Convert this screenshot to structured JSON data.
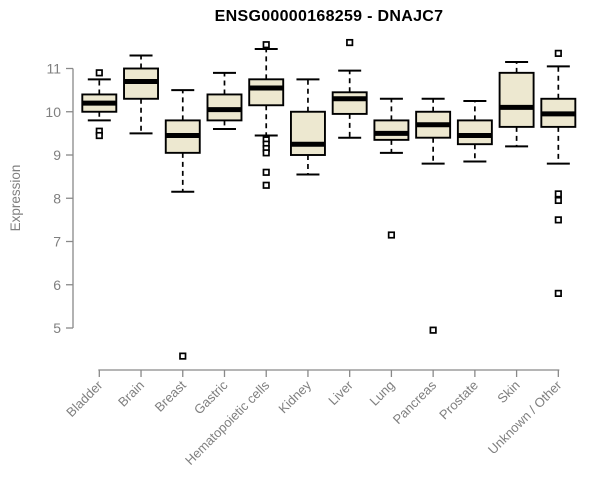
{
  "header": {
    "title": "ENSG00000168259 - DNAJC7"
  },
  "chart_data": {
    "type": "boxplot",
    "title": "ENSG00000168259 - DNAJC7",
    "xlabel": "",
    "ylabel": "Expression",
    "ylim": [
      4.2,
      11.8
    ],
    "yticks": [
      5,
      6,
      7,
      8,
      9,
      10,
      11
    ],
    "grid": false,
    "legend": "none",
    "categories": [
      "Bladder",
      "Brain",
      "Breast",
      "Gastric",
      "Hematopoietic cells",
      "Kidney",
      "Liver",
      "Lung",
      "Pancreas",
      "Prostate",
      "Skin",
      "Unknown / Other"
    ],
    "boxes": [
      {
        "category": "Bladder",
        "whisker_low": 9.8,
        "q1": 10.0,
        "median": 10.2,
        "q3": 10.4,
        "whisker_high": 10.75,
        "outliers": [
          10.9,
          9.55,
          9.45
        ]
      },
      {
        "category": "Brain",
        "whisker_low": 9.5,
        "q1": 10.3,
        "median": 10.7,
        "q3": 11.0,
        "whisker_high": 11.3,
        "outliers": []
      },
      {
        "category": "Breast",
        "whisker_low": 8.15,
        "q1": 9.05,
        "median": 9.45,
        "q3": 9.8,
        "whisker_high": 10.5,
        "outliers": [
          4.35
        ]
      },
      {
        "category": "Gastric",
        "whisker_low": 9.6,
        "q1": 9.8,
        "median": 10.05,
        "q3": 10.4,
        "whisker_high": 10.9,
        "outliers": []
      },
      {
        "category": "Hematopoietic cells",
        "whisker_low": 9.45,
        "q1": 10.15,
        "median": 10.55,
        "q3": 10.75,
        "whisker_high": 11.45,
        "outliers": [
          11.55,
          9.35,
          9.25,
          9.15,
          9.05,
          8.6,
          8.3
        ]
      },
      {
        "category": "Kidney",
        "whisker_low": 8.55,
        "q1": 9.0,
        "median": 9.25,
        "q3": 10.0,
        "whisker_high": 10.75,
        "outliers": []
      },
      {
        "category": "Liver",
        "whisker_low": 9.4,
        "q1": 9.95,
        "median": 10.3,
        "q3": 10.45,
        "whisker_high": 10.95,
        "outliers": [
          11.6
        ]
      },
      {
        "category": "Lung",
        "whisker_low": 9.05,
        "q1": 9.35,
        "median": 9.5,
        "q3": 9.8,
        "whisker_high": 10.3,
        "outliers": [
          7.15
        ]
      },
      {
        "category": "Pancreas",
        "whisker_low": 8.8,
        "q1": 9.4,
        "median": 9.7,
        "q3": 10.0,
        "whisker_high": 10.3,
        "outliers": [
          4.95
        ]
      },
      {
        "category": "Prostate",
        "whisker_low": 8.85,
        "q1": 9.25,
        "median": 9.45,
        "q3": 9.8,
        "whisker_high": 10.25,
        "outliers": []
      },
      {
        "category": "Skin",
        "whisker_low": 9.2,
        "q1": 9.65,
        "median": 10.1,
        "q3": 10.9,
        "whisker_high": 11.15,
        "outliers": []
      },
      {
        "category": "Unknown / Other",
        "whisker_low": 8.8,
        "q1": 9.65,
        "median": 9.95,
        "q3": 10.3,
        "whisker_high": 11.05,
        "outliers": [
          11.35,
          8.1,
          7.95,
          7.5,
          5.8
        ]
      }
    ],
    "colors": {
      "background": "#ffffff",
      "box_fill": "#EDE8D0",
      "box_border": "#000000",
      "median": "#000000",
      "whisker": "#000000",
      "outlier_stroke": "#000000",
      "outlier_fill": "#ffffff",
      "axis": "#898989",
      "tick_text": "#7f7f7f",
      "title": "#000000"
    }
  }
}
